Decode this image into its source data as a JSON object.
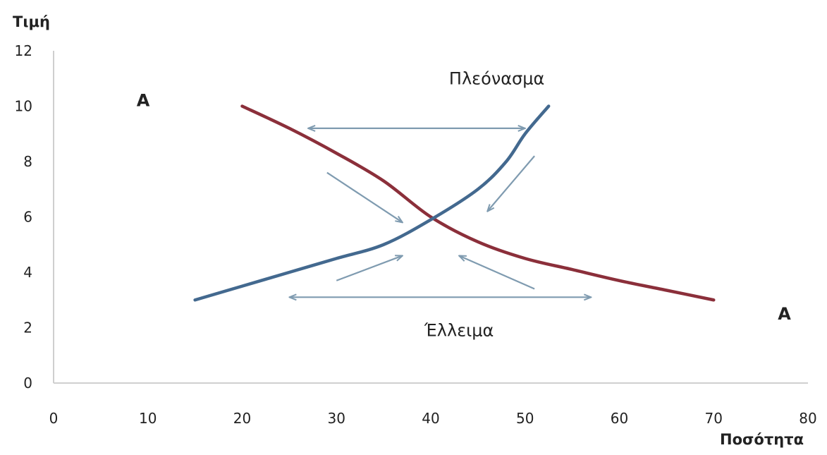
{
  "chart_data": {
    "type": "line",
    "xlabel": "Ποσότητα",
    "ylabel": "Τιμή",
    "xlim": [
      0,
      80
    ],
    "ylim": [
      0,
      12
    ],
    "xticks": [
      0,
      10,
      20,
      30,
      40,
      50,
      60,
      70,
      80
    ],
    "yticks": [
      0,
      2,
      4,
      6,
      8,
      10,
      12
    ],
    "grid": false,
    "series": [
      {
        "color": "#8b2f3a",
        "points": [
          [
            20,
            10
          ],
          [
            25,
            9.2
          ],
          [
            30,
            8.3
          ],
          [
            35,
            7.3
          ],
          [
            40,
            6.0
          ],
          [
            45,
            5.1
          ],
          [
            50,
            4.5
          ],
          [
            55,
            4.1
          ],
          [
            60,
            3.7
          ],
          [
            65,
            3.35
          ],
          [
            70,
            3.0
          ]
        ]
      },
      {
        "color": "#43698f",
        "points": [
          [
            15,
            3.0
          ],
          [
            20,
            3.5
          ],
          [
            25,
            4.0
          ],
          [
            30,
            4.5
          ],
          [
            35,
            5.0
          ],
          [
            40,
            5.9
          ],
          [
            45,
            7.0
          ],
          [
            48,
            8.0
          ],
          [
            50,
            9.0
          ],
          [
            52.5,
            10.0
          ]
        ]
      }
    ],
    "annotations": [
      {
        "text": "Πλεόνασμα",
        "x": 47,
        "y": 11.0
      },
      {
        "text": "Έλλειμα",
        "x": 43,
        "y": 1.9
      },
      {
        "text": "Α",
        "x": 9.5,
        "y": 10.2
      },
      {
        "text": "Α",
        "x": 77.5,
        "y": 2.5
      }
    ],
    "arrows": [
      {
        "from": [
          27,
          9.2
        ],
        "to": [
          50,
          9.2
        ],
        "double": true
      },
      {
        "from": [
          25,
          3.1
        ],
        "to": [
          57,
          3.1
        ],
        "double": true
      },
      {
        "from": [
          29,
          7.6
        ],
        "to": [
          37,
          5.8
        ],
        "double": false
      },
      {
        "from": [
          51,
          8.2
        ],
        "to": [
          46,
          6.2
        ],
        "double": false
      },
      {
        "from": [
          30,
          3.7
        ],
        "to": [
          37,
          4.6
        ],
        "double": false
      },
      {
        "from": [
          51,
          3.4
        ],
        "to": [
          43,
          4.6
        ],
        "double": false
      }
    ],
    "arrow_color": "#7f9bb0"
  }
}
